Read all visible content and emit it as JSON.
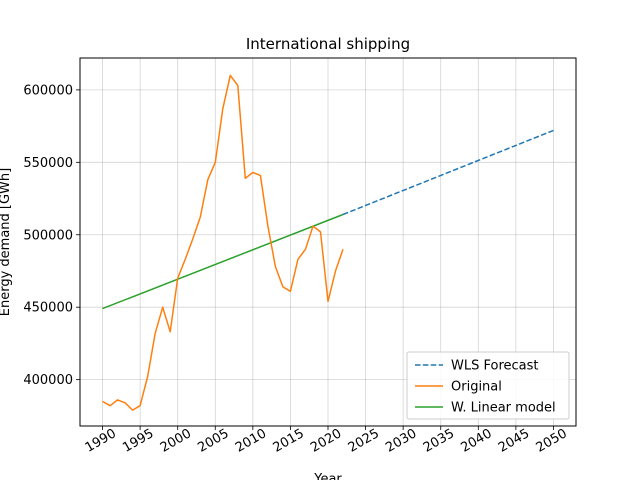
{
  "chart_data": {
    "type": "line",
    "title": "International shipping",
    "xlabel": "Year",
    "ylabel": "Energy demand [GWh]",
    "xlim": [
      1987,
      2053
    ],
    "ylim": [
      368000,
      622000
    ],
    "x_ticks": [
      1990,
      1995,
      2000,
      2005,
      2010,
      2015,
      2020,
      2025,
      2030,
      2035,
      2040,
      2045,
      2050
    ],
    "x_tick_labels": [
      "1990",
      "1995",
      "2000",
      "2005",
      "2010",
      "2015",
      "2020",
      "2025",
      "2030",
      "2035",
      "2040",
      "2045",
      "2050"
    ],
    "y_ticks": [
      400000,
      450000,
      500000,
      550000,
      600000
    ],
    "y_tick_labels": [
      "400000",
      "450000",
      "500000",
      "550000",
      "600000"
    ],
    "grid": true,
    "legend_position": "bottom-right",
    "series": [
      {
        "name": "WLS Forecast",
        "color": "#1f77b4",
        "style": "dashed",
        "x": [
          2022,
          2050
        ],
        "y": [
          514000,
          572000
        ]
      },
      {
        "name": "Original",
        "color": "#ff7f0e",
        "style": "solid",
        "x": [
          1990,
          1991,
          1992,
          1993,
          1994,
          1995,
          1996,
          1997,
          1998,
          1999,
          2000,
          2001,
          2002,
          2003,
          2004,
          2005,
          2006,
          2007,
          2008,
          2009,
          2010,
          2011,
          2012,
          2013,
          2014,
          2015,
          2016,
          2017,
          2018,
          2019,
          2020,
          2021,
          2022
        ],
        "y": [
          385000,
          382000,
          386000,
          384000,
          379000,
          382000,
          402000,
          432000,
          450000,
          433000,
          470000,
          483000,
          497000,
          512000,
          538000,
          550000,
          587000,
          610000,
          603000,
          539000,
          543000,
          541000,
          506000,
          478000,
          464000,
          461000,
          483000,
          490000,
          506000,
          502000,
          454000,
          475000,
          490000
        ]
      },
      {
        "name": "W. Linear model",
        "color": "#2ca02c",
        "style": "solid",
        "x": [
          1990,
          2022
        ],
        "y": [
          449000,
          514000
        ]
      }
    ]
  }
}
